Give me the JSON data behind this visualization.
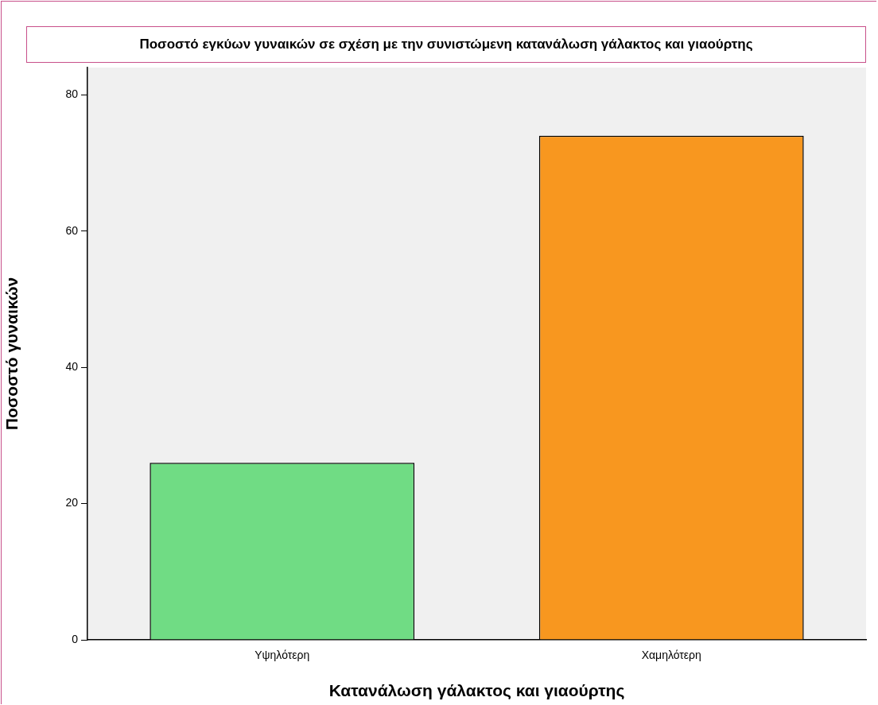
{
  "chart_data": {
    "type": "bar",
    "title": "Ποσοστό εγκύων γυναικών σε σχέση με την συνιστώμενη κατανάλωση γάλακτος και γιαούρτης",
    "xlabel": "Κατανάλωση γάλακτος και γιαούρτης",
    "ylabel": "Ποσοστό γυναικών",
    "categories": [
      "Υψηλότερη",
      "Χαμηλότερη"
    ],
    "values": [
      26,
      74
    ],
    "colors": [
      "#70dc84",
      "#f8971f"
    ],
    "ylim": [
      0,
      84
    ],
    "yticks": [
      0,
      20,
      40,
      60,
      80
    ],
    "grid": false,
    "legend": false
  }
}
